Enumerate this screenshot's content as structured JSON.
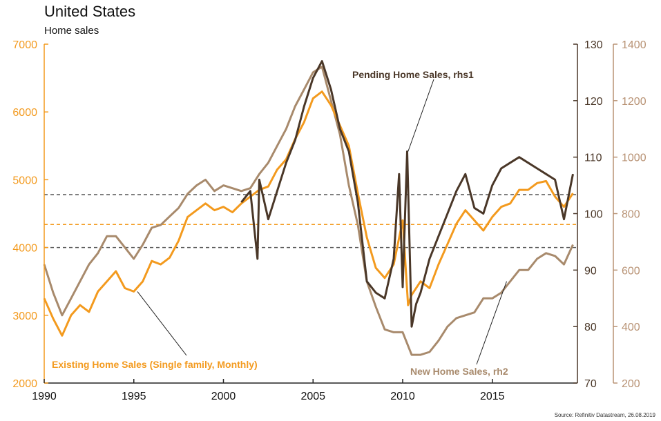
{
  "title": "United States",
  "subtitle": "Home sales",
  "source": "Source: Refinitiv Datastream, 26.08.2019",
  "colors": {
    "existing": "#f39a1e",
    "pending": "#4a3728",
    "new_sales": "#a88a6c",
    "left_axis": "#f39a1e",
    "right1_axis": "#4a3728",
    "right2_axis": "#b89274",
    "grid_dark": "#555555",
    "grid_orange": "#f39a1e"
  },
  "chart_data": {
    "type": "line",
    "xlim": [
      1990,
      2019.75
    ],
    "x_ticks": [
      "1990",
      "1995",
      "2000",
      "2005",
      "2010",
      "2015"
    ],
    "axes": {
      "left": {
        "lim": [
          2000,
          7000
        ],
        "ticks": [
          "2000",
          "3000",
          "4000",
          "5000",
          "6000",
          "7000"
        ]
      },
      "right1": {
        "lim": [
          70,
          130
        ],
        "ticks": [
          "70",
          "80",
          "90",
          "100",
          "110",
          "120",
          "130"
        ]
      },
      "right2": {
        "lim": [
          200,
          1400
        ],
        "ticks": [
          "200",
          "400",
          "600",
          "800",
          "1000",
          "1200",
          "1400"
        ]
      }
    },
    "reference_lines": [
      {
        "axis": "left",
        "value": 4780,
        "style": "dark"
      },
      {
        "axis": "left",
        "value": 4340,
        "style": "orange"
      },
      {
        "axis": "left",
        "value": 4000,
        "style": "dark"
      }
    ],
    "annotations": [
      {
        "text": "Pending Home Sales, rhs1",
        "series": "pending"
      },
      {
        "text": "Existing Home Sales (Single family, Monthly)",
        "series": "existing"
      },
      {
        "text": "New Home Sales, rh2",
        "series": "new_sales"
      }
    ],
    "series": [
      {
        "name": "Existing Home Sales (Single family, Monthly)",
        "axis": "left",
        "x": [
          1990.0,
          1990.5,
          1991.0,
          1991.5,
          1992.0,
          1992.5,
          1993.0,
          1993.5,
          1994.0,
          1994.5,
          1995.0,
          1995.5,
          1996.0,
          1996.5,
          1997.0,
          1997.5,
          1998.0,
          1998.5,
          1999.0,
          1999.5,
          2000.0,
          2000.5,
          2001.0,
          2001.5,
          2002.0,
          2002.5,
          2003.0,
          2003.5,
          2004.0,
          2004.5,
          2005.0,
          2005.5,
          2006.0,
          2006.5,
          2007.0,
          2007.5,
          2008.0,
          2008.5,
          2009.0,
          2009.5,
          2010.0,
          2010.3,
          2010.5,
          2011.0,
          2011.5,
          2012.0,
          2012.5,
          2013.0,
          2013.5,
          2014.0,
          2014.5,
          2015.0,
          2015.5,
          2016.0,
          2016.5,
          2017.0,
          2017.5,
          2018.0,
          2018.5,
          2019.0,
          2019.5
        ],
        "y": [
          3250,
          2950,
          2700,
          3000,
          3150,
          3050,
          3350,
          3500,
          3650,
          3400,
          3350,
          3500,
          3800,
          3750,
          3850,
          4100,
          4450,
          4550,
          4650,
          4550,
          4600,
          4520,
          4650,
          4750,
          4850,
          4900,
          5150,
          5300,
          5600,
          5850,
          6200,
          6300,
          6100,
          5800,
          5500,
          4800,
          4150,
          3700,
          3550,
          3750,
          4400,
          3150,
          3300,
          3500,
          3400,
          3750,
          4050,
          4350,
          4550,
          4400,
          4250,
          4450,
          4600,
          4650,
          4850,
          4850,
          4950,
          4980,
          4750,
          4600,
          4800
        ]
      },
      {
        "name": "Pending Home Sales, rhs1",
        "axis": "right1",
        "x": [
          2001.0,
          2001.5,
          2001.9,
          2002.0,
          2002.5,
          2003.0,
          2003.5,
          2004.0,
          2004.5,
          2005.0,
          2005.5,
          2006.0,
          2006.5,
          2007.0,
          2007.5,
          2008.0,
          2008.5,
          2009.0,
          2009.5,
          2009.8,
          2010.0,
          2010.25,
          2010.5,
          2010.75,
          2011.0,
          2011.5,
          2012.0,
          2012.5,
          2013.0,
          2013.5,
          2014.0,
          2014.5,
          2015.0,
          2015.5,
          2016.0,
          2016.5,
          2017.0,
          2017.5,
          2018.0,
          2018.5,
          2019.0,
          2019.5
        ],
        "y": [
          102,
          104,
          92,
          106,
          99,
          104,
          109,
          113,
          119,
          124,
          127,
          122,
          115,
          111,
          102,
          88,
          86,
          85,
          92,
          107,
          87,
          111,
          80,
          84,
          86,
          92,
          96,
          100,
          104,
          107,
          101,
          100,
          105,
          108,
          109,
          110,
          109,
          108,
          107,
          106,
          99,
          107
        ]
      },
      {
        "name": "New Home Sales, rh2",
        "axis": "right2",
        "x": [
          1990.0,
          1990.5,
          1991.0,
          1991.5,
          1992.0,
          1992.5,
          1993.0,
          1993.5,
          1994.0,
          1994.5,
          1995.0,
          1995.5,
          1996.0,
          1996.5,
          1997.0,
          1997.5,
          1998.0,
          1998.5,
          1999.0,
          1999.5,
          2000.0,
          2000.5,
          2001.0,
          2001.5,
          2002.0,
          2002.5,
          2003.0,
          2003.5,
          2004.0,
          2004.5,
          2005.0,
          2005.5,
          2006.0,
          2006.5,
          2007.0,
          2007.5,
          2008.0,
          2008.5,
          2009.0,
          2009.5,
          2010.0,
          2010.5,
          2011.0,
          2011.5,
          2012.0,
          2012.5,
          2013.0,
          2013.5,
          2014.0,
          2014.5,
          2015.0,
          2015.5,
          2016.0,
          2016.5,
          2017.0,
          2017.5,
          2018.0,
          2018.5,
          2019.0,
          2019.5
        ],
        "y": [
          620,
          520,
          440,
          500,
          560,
          620,
          660,
          720,
          720,
          680,
          640,
          690,
          750,
          760,
          790,
          820,
          870,
          900,
          920,
          880,
          900,
          890,
          880,
          890,
          940,
          980,
          1040,
          1100,
          1180,
          1240,
          1300,
          1320,
          1200,
          1080,
          900,
          760,
          560,
          470,
          390,
          380,
          380,
          300,
          300,
          310,
          350,
          400,
          430,
          440,
          450,
          500,
          500,
          520,
          560,
          600,
          600,
          640,
          660,
          650,
          620,
          690
        ]
      }
    ]
  }
}
